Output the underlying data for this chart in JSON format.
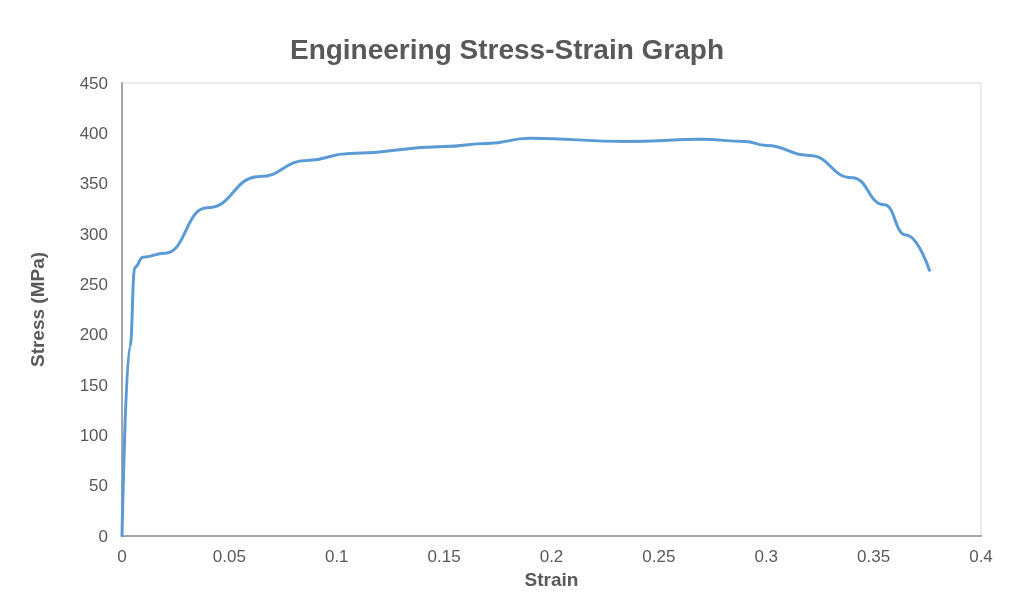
{
  "chart_data": {
    "type": "line",
    "title": "Engineering Stress-Strain Graph",
    "xlabel": "Strain",
    "ylabel": "Stress (MPa)",
    "xlim": [
      0,
      0.4
    ],
    "xticks": [
      0,
      0.05,
      0.1,
      0.15,
      0.2,
      0.25,
      0.3,
      0.35,
      0.4
    ],
    "ylim": [
      0,
      450
    ],
    "yticks": [
      0,
      50,
      100,
      150,
      200,
      250,
      300,
      350,
      400,
      450
    ],
    "marker": "none",
    "line_style": "solid",
    "series": [
      {
        "color": "#5b9bd5",
        "x": [
          0,
          0.0037,
          0.006,
          0.0098,
          0.02,
          0.0396,
          0.064,
          0.086,
          0.106,
          0.15,
          0.17,
          0.19,
          0.235,
          0.27,
          0.29,
          0.3,
          0.32,
          0.34,
          0.355,
          0.365,
          0.376
        ],
        "values": [
          0,
          188,
          267,
          277,
          281,
          326,
          357,
          373,
          380,
          387,
          390,
          395,
          392,
          394,
          392,
          388,
          378,
          356,
          329,
          299,
          264
        ]
      }
    ]
  }
}
